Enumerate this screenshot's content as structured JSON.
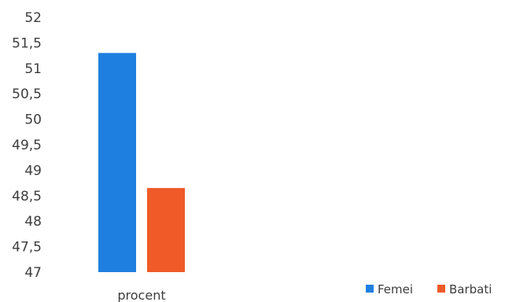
{
  "chart_data": {
    "type": "bar",
    "categories": [
      "procent"
    ],
    "series": [
      {
        "name": "Femei",
        "values": [
          51.3
        ],
        "color": "#1f7fe0"
      },
      {
        "name": "Barbati",
        "values": [
          48.65
        ],
        "color": "#ef5a28"
      }
    ],
    "ylim": [
      47,
      52
    ],
    "yticks": [
      "47",
      "47,5",
      "48",
      "48,5",
      "49",
      "49,5",
      "50",
      "50,5",
      "51",
      "51,5",
      "52"
    ],
    "grid": false,
    "legend_position": "bottom-right"
  }
}
